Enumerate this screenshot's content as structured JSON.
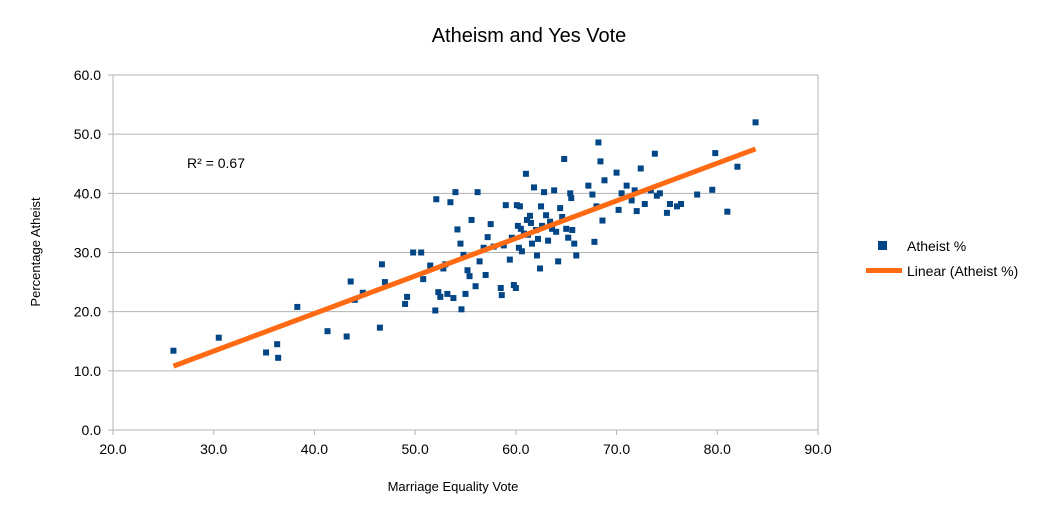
{
  "chart_data": {
    "type": "scatter",
    "title": "Atheism and Yes Vote",
    "xlabel": "Marriage Equality Vote",
    "ylabel": "Percentage Atheist",
    "xlim": [
      20,
      90
    ],
    "ylim": [
      0,
      60
    ],
    "xticks": [
      "20.0",
      "30.0",
      "40.0",
      "50.0",
      "60.0",
      "70.0",
      "80.0",
      "90.0"
    ],
    "yticks": [
      "0.0",
      "10.0",
      "20.0",
      "30.0",
      "40.0",
      "50.0",
      "60.0"
    ],
    "grid": "horizontal",
    "legend_position": "right",
    "annotation": "R² = 0.67",
    "series": [
      {
        "name": "Atheist %",
        "marker": "square",
        "color": "#004586",
        "x": [
          26.0,
          30.5,
          35.2,
          36.3,
          36.4,
          38.3,
          41.3,
          43.2,
          43.6,
          44.0,
          44.8,
          46.5,
          46.7,
          47.0,
          49.0,
          49.2,
          49.8,
          50.6,
          50.8,
          51.5,
          52.0,
          52.1,
          52.3,
          52.5,
          52.8,
          53.0,
          53.2,
          53.5,
          53.8,
          54.0,
          54.2,
          54.5,
          54.6,
          54.8,
          55.0,
          55.2,
          55.4,
          55.6,
          56.0,
          56.2,
          56.4,
          56.8,
          57.0,
          57.2,
          57.5,
          57.8,
          58.5,
          58.6,
          58.8,
          59.0,
          59.4,
          59.6,
          59.8,
          60.0,
          60.1,
          60.2,
          60.3,
          60.4,
          60.5,
          60.6,
          60.8,
          61.0,
          61.1,
          61.2,
          61.4,
          61.5,
          61.6,
          61.8,
          62.0,
          62.1,
          62.2,
          62.4,
          62.5,
          62.6,
          62.8,
          63.0,
          63.2,
          63.4,
          63.6,
          63.8,
          64.0,
          64.2,
          64.4,
          64.6,
          64.8,
          65.0,
          65.2,
          65.4,
          65.5,
          65.6,
          65.8,
          66.0,
          67.2,
          67.6,
          67.8,
          68.0,
          68.2,
          68.4,
          68.6,
          68.8,
          70.0,
          70.2,
          70.5,
          71.0,
          71.5,
          71.8,
          72.0,
          72.4,
          72.8,
          73.4,
          73.8,
          74.0,
          74.3,
          75.0,
          75.3,
          76.0,
          76.4,
          78.0,
          79.5,
          79.8,
          81.0,
          82.0,
          83.8
        ],
        "y": [
          13.4,
          15.6,
          13.1,
          14.5,
          12.2,
          20.8,
          16.7,
          15.8,
          25.1,
          22.0,
          23.2,
          17.3,
          28.0,
          25.0,
          21.3,
          22.5,
          30.0,
          30.0,
          25.5,
          27.8,
          20.2,
          39.0,
          23.3,
          22.5,
          27.3,
          28.0,
          23.0,
          38.5,
          22.3,
          40.2,
          33.9,
          31.5,
          20.4,
          29.6,
          23.0,
          27.0,
          26.0,
          35.5,
          24.3,
          40.2,
          28.5,
          30.8,
          26.2,
          32.6,
          34.8,
          31.0,
          24.0,
          22.8,
          31.2,
          38.0,
          28.8,
          32.5,
          24.5,
          24.0,
          38.0,
          34.5,
          30.8,
          37.8,
          34.0,
          30.2,
          33.2,
          43.3,
          35.5,
          33.0,
          36.2,
          35.0,
          31.5,
          41.0,
          33.8,
          29.5,
          32.3,
          27.3,
          37.8,
          34.5,
          40.2,
          36.3,
          32.0,
          35.2,
          34.0,
          40.5,
          33.5,
          28.5,
          37.5,
          36.0,
          45.8,
          34.0,
          32.5,
          40.0,
          39.2,
          33.8,
          31.5,
          29.5,
          41.3,
          39.8,
          31.8,
          37.8,
          48.6,
          45.4,
          35.4,
          42.2,
          43.5,
          37.2,
          40.0,
          41.3,
          38.8,
          40.5,
          37.0,
          44.2,
          38.2,
          40.5,
          46.7,
          39.6,
          40.0,
          36.7,
          38.2,
          37.8,
          38.2,
          39.8,
          40.6,
          46.8,
          36.9,
          44.5,
          52.0
        ]
      },
      {
        "name": "Linear (Atheist %)",
        "kind": "trendline",
        "color": "#ff6a13",
        "x": [
          26.0,
          83.8
        ],
        "y": [
          10.8,
          47.5
        ]
      }
    ]
  }
}
